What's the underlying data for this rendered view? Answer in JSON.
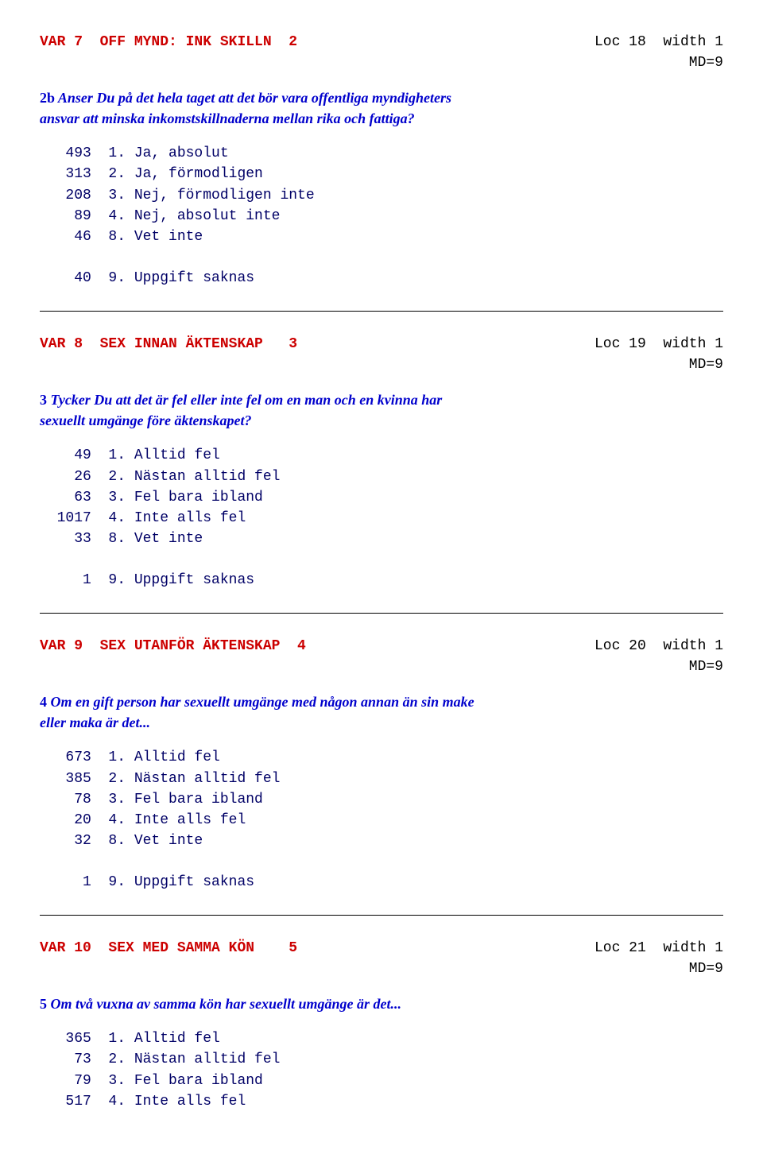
{
  "colors": {
    "var_label": "#cc0000",
    "question": "#0000cc",
    "freq_text": "#000066",
    "loc_text": "#000000",
    "background": "#ffffff",
    "rule": "#000000"
  },
  "fonts": {
    "mono": "Courier New",
    "serif": "Times New Roman",
    "var_size_pt": 14,
    "question_size_pt": 14
  },
  "vars": [
    {
      "header": "VAR 7  OFF MYND: INK SKILLN  2",
      "loc": "Loc 18  width 1",
      "md": "MD=9",
      "q_num": "2b",
      "q_text": " Anser Du på det hela taget att det bör vara offentliga myndigheters ansvar att minska inkomstskillnaderna mellan rika och fattiga?",
      "responses": [
        {
          "f": "493",
          "c": "1.",
          "l": "Ja, absolut"
        },
        {
          "f": "313",
          "c": "2.",
          "l": "Ja, förmodligen"
        },
        {
          "f": "208",
          "c": "3.",
          "l": "Nej, förmodligen inte"
        },
        {
          "f": "89",
          "c": "4.",
          "l": "Nej, absolut inte"
        },
        {
          "f": "46",
          "c": "8.",
          "l": "Vet inte"
        }
      ],
      "missing": [
        {
          "f": "40",
          "c": "9.",
          "l": "Uppgift saknas"
        }
      ]
    },
    {
      "header": "VAR 8  SEX INNAN ÄKTENSKAP   3",
      "loc": "Loc 19  width 1",
      "md": "MD=9",
      "q_num": "3",
      "q_text": " Tycker Du att det är fel eller inte fel om en man och en kvinna har sexuellt umgänge före äktenskapet?",
      "responses": [
        {
          "f": "49",
          "c": "1.",
          "l": "Alltid fel"
        },
        {
          "f": "26",
          "c": "2.",
          "l": "Nästan alltid fel"
        },
        {
          "f": "63",
          "c": "3.",
          "l": "Fel bara ibland"
        },
        {
          "f": "1017",
          "c": "4.",
          "l": "Inte alls fel"
        },
        {
          "f": "33",
          "c": "8.",
          "l": "Vet inte"
        }
      ],
      "missing": [
        {
          "f": "1",
          "c": "9.",
          "l": "Uppgift saknas"
        }
      ]
    },
    {
      "header": "VAR 9  SEX UTANFÖR ÄKTENSKAP  4",
      "loc": "Loc 20  width 1",
      "md": "MD=9",
      "q_num": "4",
      "q_text": " Om en gift person har sexuellt umgänge med någon annan än sin make eller maka är det...",
      "responses": [
        {
          "f": "673",
          "c": "1.",
          "l": "Alltid fel"
        },
        {
          "f": "385",
          "c": "2.",
          "l": "Nästan alltid fel"
        },
        {
          "f": "78",
          "c": "3.",
          "l": "Fel bara ibland"
        },
        {
          "f": "20",
          "c": "4.",
          "l": "Inte alls fel"
        },
        {
          "f": "32",
          "c": "8.",
          "l": "Vet inte"
        }
      ],
      "missing": [
        {
          "f": "1",
          "c": "9.",
          "l": "Uppgift saknas"
        }
      ]
    },
    {
      "header": "VAR 10  SEX MED SAMMA KÖN    5",
      "loc": "Loc 21  width 1",
      "md": "MD=9",
      "q_num": "5",
      "q_text": " Om två vuxna av samma kön har sexuellt umgänge är det...",
      "responses": [
        {
          "f": "365",
          "c": "1.",
          "l": "Alltid fel"
        },
        {
          "f": "73",
          "c": "2.",
          "l": "Nästan alltid fel"
        },
        {
          "f": "79",
          "c": "3.",
          "l": "Fel bara ibland"
        },
        {
          "f": "517",
          "c": "4.",
          "l": "Inte alls fel"
        }
      ],
      "missing": []
    }
  ]
}
